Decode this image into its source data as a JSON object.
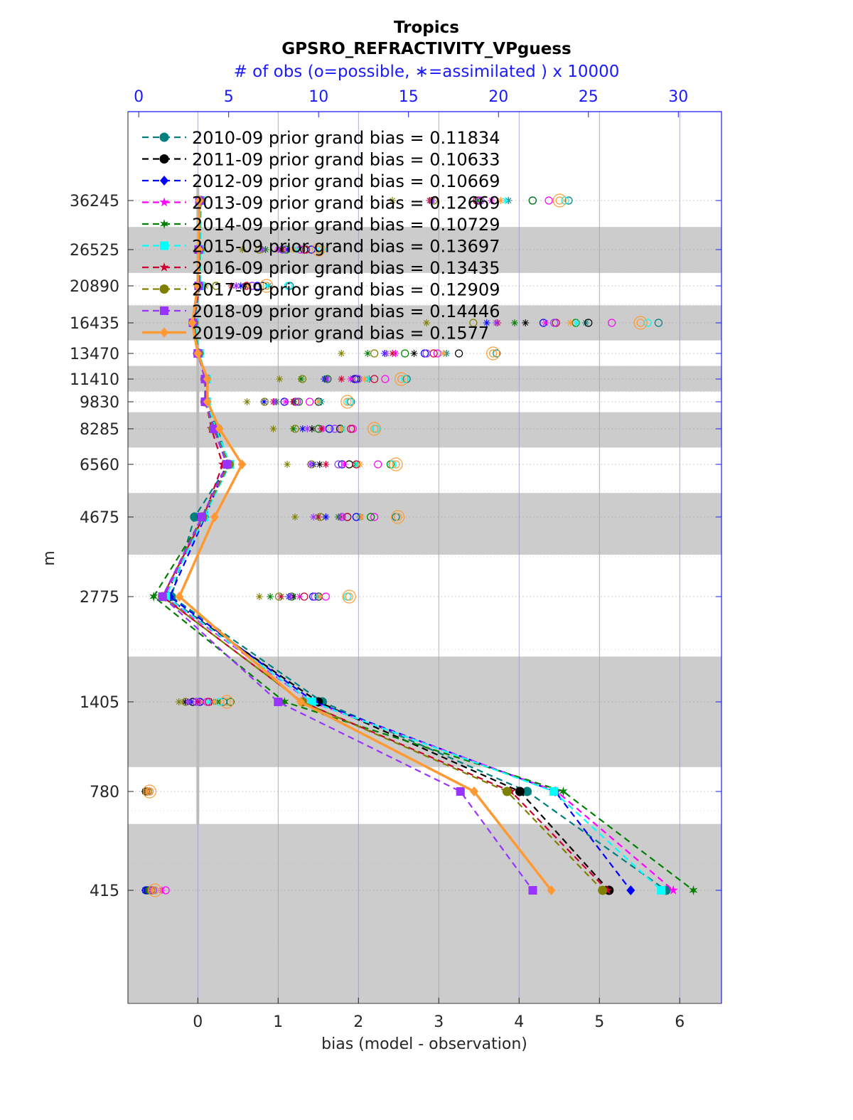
{
  "title_line1": "Tropics",
  "title_line2": "GPSRO_REFRACTIVITY_VPguess",
  "title_line3": "# of obs (o=possible, ∗=assimilated ) x 10000",
  "chart_data": {
    "type": "line",
    "xlabel": "bias (model - observation)",
    "ylabel": "m",
    "xlim": [
      -0.87,
      6.52
    ],
    "x_ticks": [
      "0",
      "1",
      "2",
      "3",
      "4",
      "5",
      "6"
    ],
    "x_tick_values": [
      0,
      1,
      2,
      3,
      4,
      5,
      6
    ],
    "top_axis": {
      "ticks": [
        "0",
        "5",
        "10",
        "15",
        "20",
        "25",
        "30"
      ],
      "tick_values": [
        0,
        5,
        10,
        15,
        20,
        25,
        30
      ],
      "xlim": [
        -0.6,
        32.4
      ],
      "color": "#1a1aff"
    },
    "y_tick_labels": [
      "36245",
      "26525",
      "20890",
      "16435",
      "13470",
      "11410",
      "9830",
      "8285",
      "6560",
      "4675",
      "2775",
      "1405",
      "780",
      "415"
    ],
    "shaded_bands": [
      [
        22895,
        31010
      ],
      [
        14730,
        18550
      ],
      [
        10545,
        12465
      ],
      [
        7375,
        9235
      ],
      [
        3775,
        5535
      ],
      [
        950,
        1995
      ],
      [
        0,
        660
      ]
    ],
    "zero_line_color": "#bbbbbb",
    "grid": true,
    "legend_position": "top-left",
    "series": [
      {
        "name": "2010-09 prior grand bias = 0.11834",
        "color": "#007f7f",
        "marker": "circle",
        "line": "dashed",
        "values": [
          0.04,
          0.03,
          0.02,
          -0.05,
          0.02,
          0.1,
          0.1,
          0.25,
          0.38,
          -0.04,
          -0.33,
          1.55,
          4.1,
          5.83
        ]
      },
      {
        "name": "2011-09 prior grand bias = 0.10633",
        "color": "#000000",
        "marker": "circle",
        "line": "dashed",
        "values": [
          0.03,
          0.02,
          0.01,
          -0.06,
          0.0,
          0.09,
          0.09,
          0.24,
          0.37,
          0.05,
          -0.4,
          1.5,
          4.01,
          5.12
        ]
      },
      {
        "name": "2012-09 prior grand bias = 0.10669",
        "color": "#0000ff",
        "marker": "diamond",
        "line": "dashed",
        "values": [
          0.02,
          0.01,
          0.02,
          -0.05,
          0.01,
          0.11,
          0.1,
          0.2,
          0.36,
          0.09,
          -0.35,
          1.45,
          4.45,
          5.39
        ]
      },
      {
        "name": "2013-09 prior grand bias = 0.12669",
        "color": "#ff00ff",
        "marker": "star",
        "line": "dashed",
        "values": [
          0.03,
          0.01,
          0.02,
          -0.05,
          0.02,
          0.1,
          0.09,
          0.22,
          0.38,
          0.08,
          -0.42,
          1.41,
          4.47,
          5.92
        ]
      },
      {
        "name": "2014-09 prior grand bias = 0.10729",
        "color": "#007f00",
        "marker": "hexagram",
        "line": "dashed",
        "values": [
          0.03,
          0.02,
          0.02,
          -0.05,
          0.01,
          0.1,
          0.1,
          0.22,
          0.39,
          0.07,
          -0.55,
          1.08,
          4.55,
          6.17
        ]
      },
      {
        "name": "2015-09 prior grand bias = 0.13697",
        "color": "#00ffff",
        "marker": "square",
        "line": "dashed",
        "values": [
          0.04,
          0.03,
          0.03,
          -0.04,
          0.02,
          0.11,
          0.11,
          0.23,
          0.4,
          0.08,
          -0.4,
          1.42,
          4.43,
          5.77
        ]
      },
      {
        "name": "2016-09 prior grand bias = 0.13435",
        "color": "#cc0033",
        "marker": "star",
        "line": "dashed",
        "values": [
          0.03,
          0.02,
          0.02,
          -0.05,
          0.01,
          0.1,
          0.1,
          0.17,
          0.31,
          0.07,
          -0.44,
          1.3,
          3.9,
          5.1
        ]
      },
      {
        "name": "2017-09 prior grand bias = 0.12909",
        "color": "#808000",
        "marker": "circle",
        "line": "dashed",
        "values": [
          0.03,
          0.02,
          0.01,
          -0.05,
          0.01,
          0.09,
          0.09,
          0.19,
          0.39,
          0.06,
          -0.44,
          1.3,
          3.85,
          5.04
        ]
      },
      {
        "name": "2018-09 prior grand bias = 0.14446",
        "color": "#9933ff",
        "marker": "square",
        "line": "dashed",
        "values": [
          0.02,
          0.01,
          0.01,
          -0.06,
          0.0,
          0.09,
          0.09,
          0.2,
          0.36,
          0.05,
          -0.44,
          1.0,
          3.27,
          4.17
        ]
      },
      {
        "name": "2019-09 prior grand bias = 0.1577",
        "color": "#ff9933",
        "marker": "diamond",
        "line": "solid",
        "values": [
          0.02,
          0.01,
          0.0,
          -0.07,
          0.0,
          0.12,
          0.12,
          0.27,
          0.55,
          0.21,
          -0.23,
          1.28,
          3.44,
          4.4
        ]
      }
    ]
  }
}
